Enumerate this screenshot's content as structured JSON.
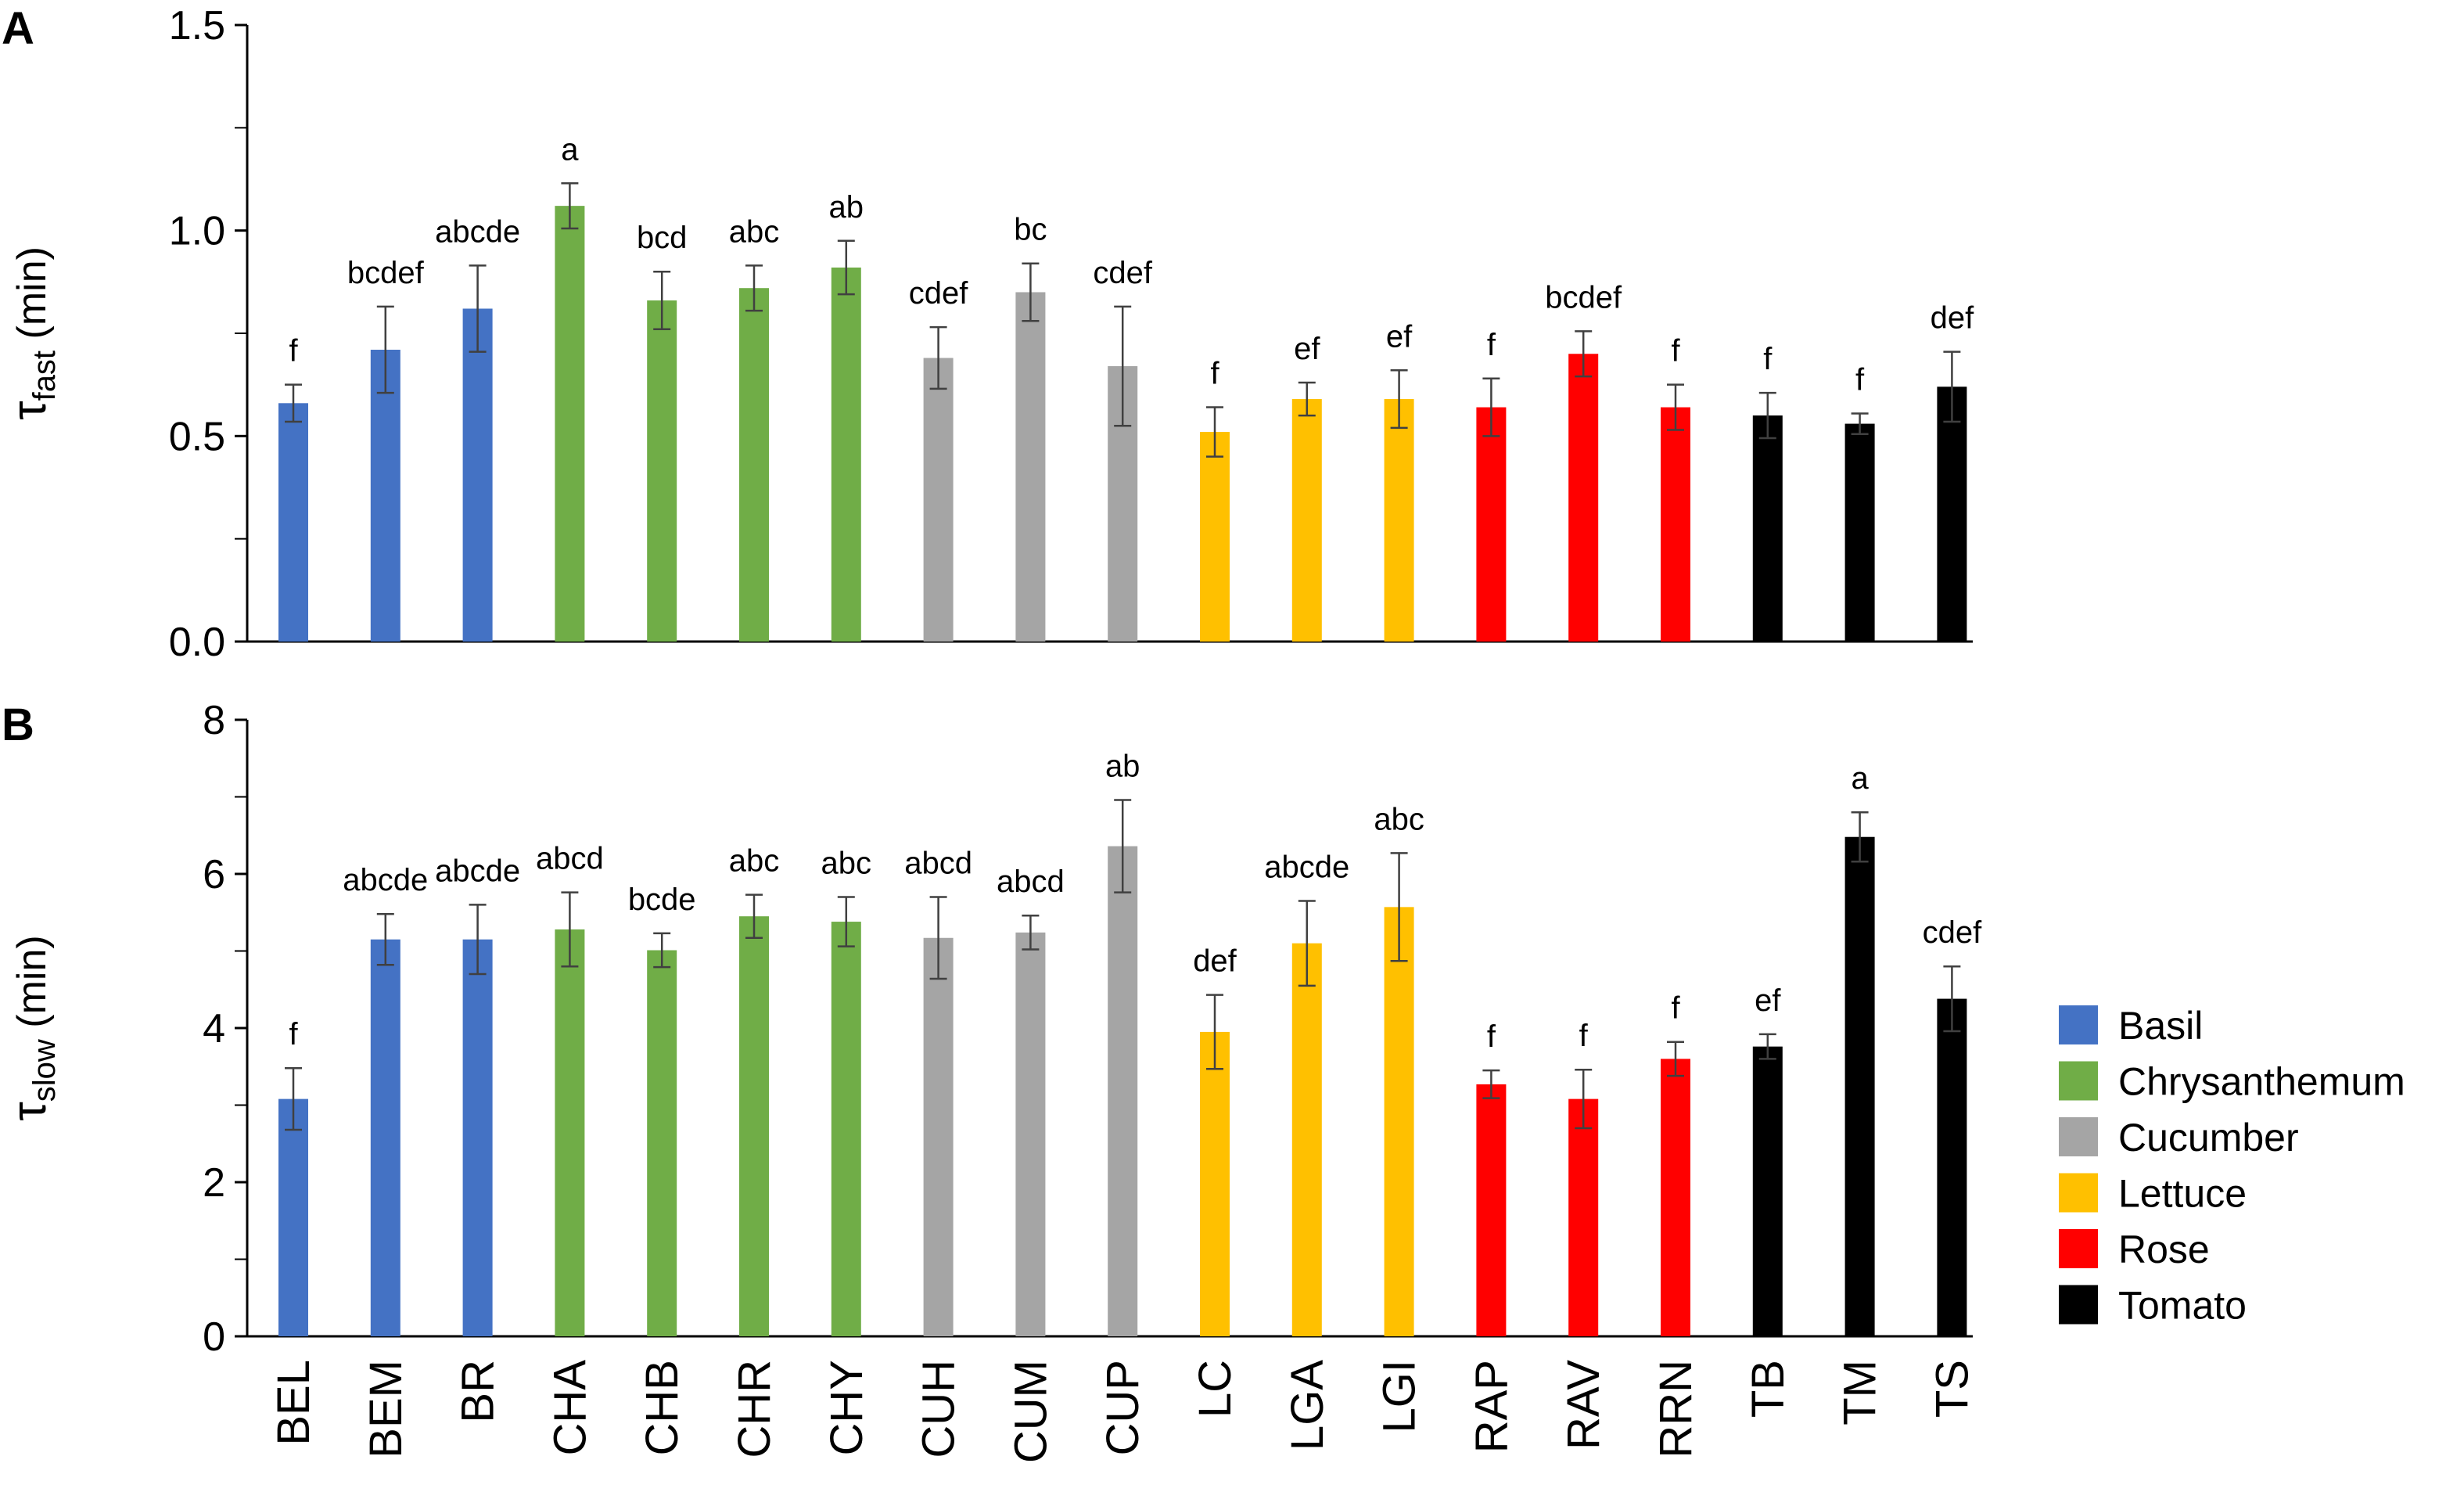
{
  "chart_data": [
    {
      "type": "bar",
      "panel": "A",
      "ylabel_symbol": "τ",
      "ylabel_sub": "fast",
      "ylabel_unit": " (min)",
      "ylim": [
        0,
        1.5
      ],
      "ytick_labels": [
        "0.0",
        "0.5",
        "1.0",
        "1.5"
      ],
      "categories": [
        "BEL",
        "BEM",
        "BR",
        "CHA",
        "CHB",
        "CHR",
        "CHY",
        "CUH",
        "CUM",
        "CUP",
        "LC",
        "LGA",
        "LGI",
        "RAP",
        "RAV",
        "RRN",
        "TB",
        "TM",
        "TS"
      ],
      "values": [
        0.58,
        0.71,
        0.81,
        1.06,
        0.83,
        0.86,
        0.91,
        0.69,
        0.85,
        0.67,
        0.51,
        0.59,
        0.59,
        0.57,
        0.7,
        0.57,
        0.55,
        0.53,
        0.62
      ],
      "errors": [
        0.045,
        0.105,
        0.105,
        0.055,
        0.07,
        0.055,
        0.065,
        0.075,
        0.07,
        0.145,
        0.06,
        0.04,
        0.07,
        0.07,
        0.055,
        0.055,
        0.055,
        0.025,
        0.085
      ],
      "significance": [
        "f",
        "bcdef",
        "abcde",
        "a",
        "bcd",
        "abc",
        "ab",
        "cdef",
        "bc",
        "cdef",
        "f",
        "ef",
        "ef",
        "f",
        "bcdef",
        "f",
        "f",
        "f",
        "def"
      ]
    },
    {
      "type": "bar",
      "panel": "B",
      "ylabel_symbol": "τ",
      "ylabel_sub": "slow",
      "ylabel_unit": " (min)",
      "ylim": [
        0,
        8
      ],
      "ytick_labels": [
        "0",
        "2",
        "4",
        "6",
        "8"
      ],
      "categories": [
        "BEL",
        "BEM",
        "BR",
        "CHA",
        "CHB",
        "CHR",
        "CHY",
        "CUH",
        "CUM",
        "CUP",
        "LC",
        "LGA",
        "LGI",
        "RAP",
        "RAV",
        "RRN",
        "TB",
        "TM",
        "TS"
      ],
      "values": [
        3.08,
        5.15,
        5.15,
        5.28,
        5.01,
        5.45,
        5.38,
        5.17,
        5.24,
        6.36,
        3.95,
        5.1,
        5.57,
        3.27,
        3.08,
        3.6,
        3.76,
        6.48,
        4.38
      ],
      "errors": [
        0.4,
        0.33,
        0.45,
        0.48,
        0.22,
        0.28,
        0.32,
        0.53,
        0.22,
        0.6,
        0.48,
        0.55,
        0.7,
        0.18,
        0.38,
        0.22,
        0.16,
        0.32,
        0.42
      ],
      "significance": [
        "f",
        "abcde",
        "abcde",
        "abcd",
        "bcde",
        "abc",
        "abc",
        "abcd",
        "abcd",
        "ab",
        "def",
        "abcde",
        "abc",
        "f",
        "f",
        "f",
        "ef",
        "a",
        "cdef"
      ]
    }
  ],
  "groups": [
    "basil",
    "basil",
    "basil",
    "chrys",
    "chrys",
    "chrys",
    "chrys",
    "cuc",
    "cuc",
    "cuc",
    "let",
    "let",
    "let",
    "rose",
    "rose",
    "rose",
    "tom",
    "tom",
    "tom"
  ],
  "legend": [
    {
      "key": "basil",
      "label": "Basil",
      "color": "#4472C4"
    },
    {
      "key": "chrys",
      "label": "Chrysanthemum",
      "color": "#70AD47"
    },
    {
      "key": "cuc",
      "label": "Cucumber",
      "color": "#A5A5A5"
    },
    {
      "key": "let",
      "label": "Lettuce",
      "color": "#FFC000"
    },
    {
      "key": "rose",
      "label": "Rose",
      "color": "#FF0000"
    },
    {
      "key": "tom",
      "label": "Tomato",
      "color": "#000000"
    }
  ],
  "error_bar_color": "#404040"
}
